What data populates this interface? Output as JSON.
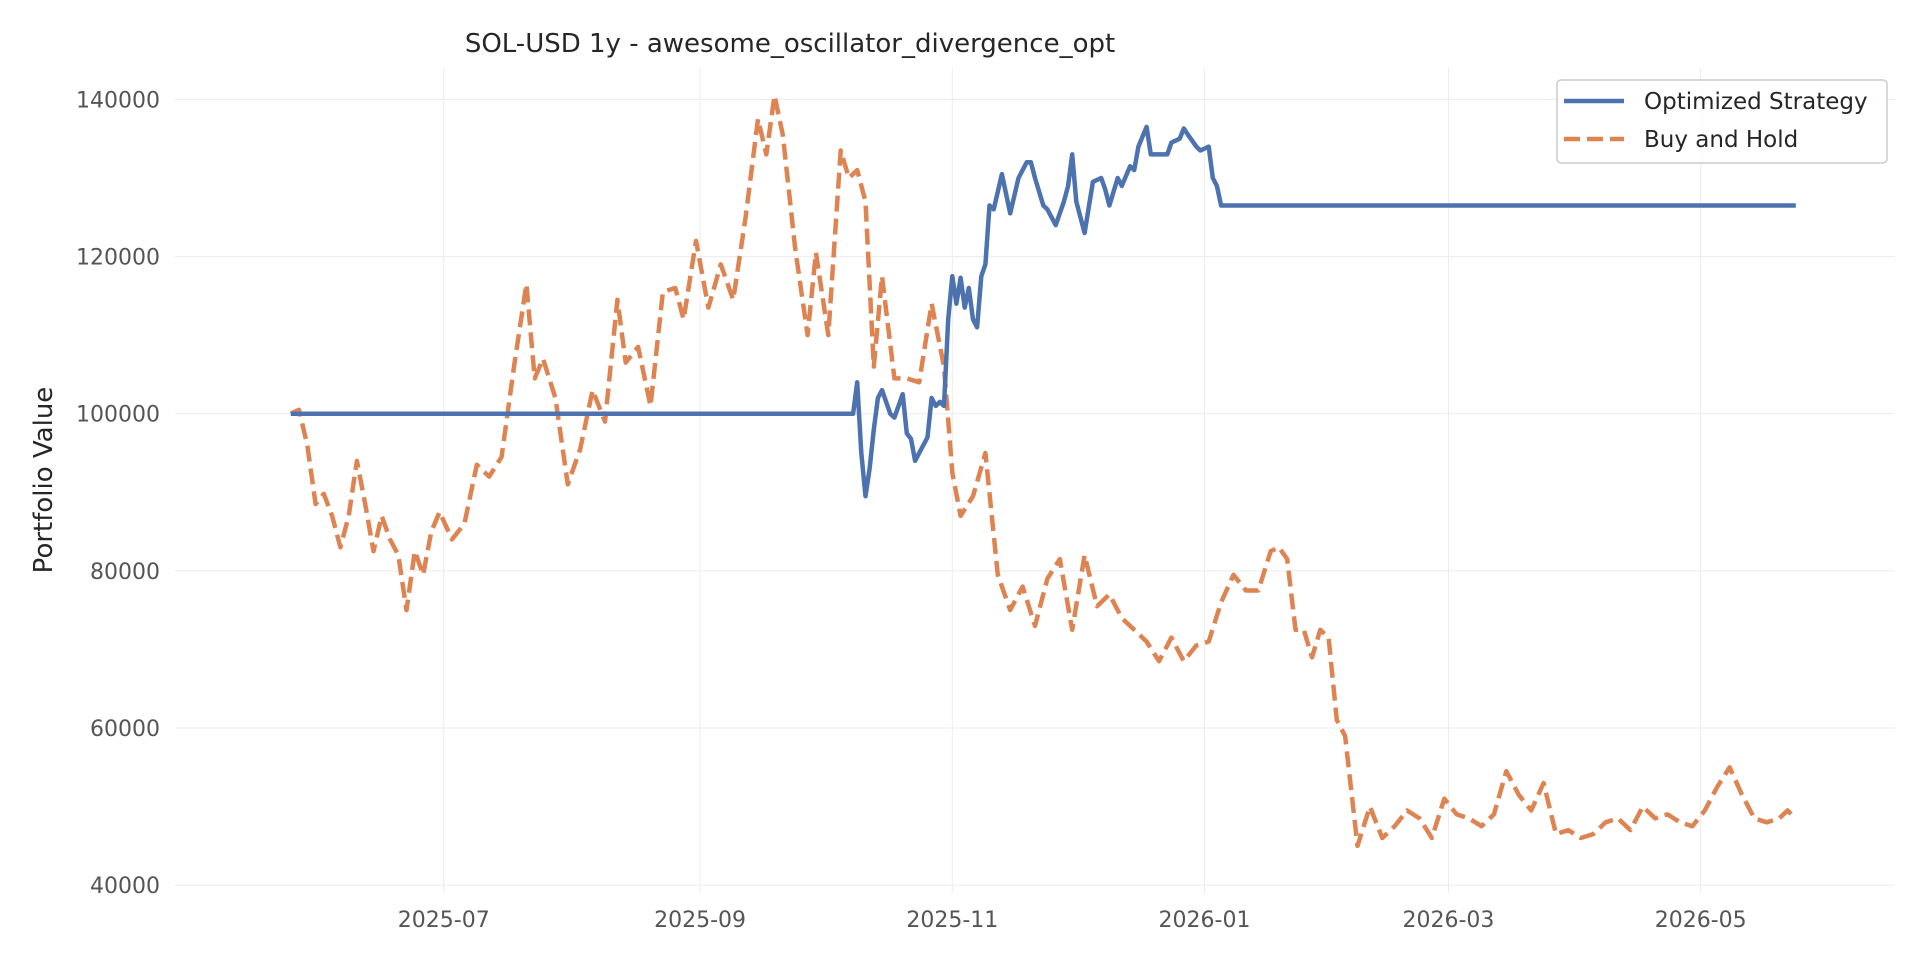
{
  "chart_data": {
    "type": "line",
    "title": "SOL-USD 1y - awesome_oscillator_divergence_opt",
    "xlabel": "",
    "ylabel": "Portfolio Value",
    "x_type": "date",
    "xlim": [
      "2025-04-27",
      "2026-06-17"
    ],
    "ylim": [
      39000,
      144000
    ],
    "grid": true,
    "legend_position": "top-right",
    "x_ticks": [
      "2025-07",
      "2025-09",
      "2025-11",
      "2026-01",
      "2026-03",
      "2026-05"
    ],
    "y_ticks": [
      40000,
      60000,
      80000,
      100000,
      120000,
      140000
    ],
    "x_tick_dates": [
      "2025-07-01",
      "2025-09-01",
      "2025-11-01",
      "2026-01-01",
      "2026-03-01",
      "2026-05-01"
    ],
    "series": [
      {
        "name": "Optimized Strategy",
        "color": "#4c72b0",
        "style": "solid",
        "x": [
          "2025-05-25",
          "2025-06-15",
          "2025-07-15",
          "2025-08-15",
          "2025-09-15",
          "2025-10-08",
          "2025-10-09",
          "2025-10-10",
          "2025-10-11",
          "2025-10-12",
          "2025-10-13",
          "2025-10-14",
          "2025-10-15",
          "2025-10-17",
          "2025-10-18",
          "2025-10-20",
          "2025-10-21",
          "2025-10-22",
          "2025-10-23",
          "2025-10-24",
          "2025-10-26",
          "2025-10-27",
          "2025-10-28",
          "2025-10-29",
          "2025-10-30",
          "2025-10-31",
          "2025-11-01",
          "2025-11-02",
          "2025-11-03",
          "2025-11-04",
          "2025-11-05",
          "2025-11-06",
          "2025-11-07",
          "2025-11-08",
          "2025-11-09",
          "2025-11-10",
          "2025-11-11",
          "2025-11-13",
          "2025-11-15",
          "2025-11-17",
          "2025-11-19",
          "2025-11-20",
          "2025-11-21",
          "2025-11-23",
          "2025-11-24",
          "2025-11-26",
          "2025-11-28",
          "2025-11-29",
          "2025-11-30",
          "2025-12-01",
          "2025-12-03",
          "2025-12-05",
          "2025-12-07",
          "2025-12-08",
          "2025-12-09",
          "2025-12-11",
          "2025-12-12",
          "2025-12-14",
          "2025-12-15",
          "2025-12-16",
          "2025-12-18",
          "2025-12-19",
          "2025-12-21",
          "2025-12-23",
          "2025-12-24",
          "2025-12-26",
          "2025-12-27",
          "2025-12-28",
          "2025-12-30",
          "2025-12-31",
          "2026-01-02",
          "2026-01-03",
          "2026-01-04",
          "2026-01-05",
          "2026-02-15",
          "2026-04-01",
          "2026-05-24"
        ],
        "y": [
          100000,
          100000,
          100000,
          100000,
          100000,
          100000,
          104000,
          95000,
          89500,
          93000,
          98000,
          102000,
          103000,
          100000,
          99500,
          102500,
          97500,
          96800,
          94000,
          95000,
          97000,
          102000,
          101000,
          101500,
          101000,
          112000,
          117500,
          114000,
          117300,
          113500,
          116000,
          112000,
          111000,
          117500,
          119000,
          126500,
          126000,
          130500,
          125500,
          130000,
          132000,
          132000,
          130000,
          126500,
          126000,
          124000,
          127000,
          129000,
          133000,
          127000,
          123000,
          129500,
          130000,
          128500,
          126500,
          130000,
          129000,
          131500,
          131000,
          134000,
          136500,
          133000,
          133000,
          133000,
          134500,
          135000,
          136300,
          135500,
          134000,
          133500,
          134000,
          130000,
          129000,
          126500,
          126500,
          126500,
          126500
        ]
      },
      {
        "name": "Buy and Hold",
        "color": "#dd8452",
        "style": "dashed",
        "x": [
          "2025-05-25",
          "2025-05-27",
          "2025-05-29",
          "2025-05-31",
          "2025-06-02",
          "2025-06-04",
          "2025-06-06",
          "2025-06-08",
          "2025-06-10",
          "2025-06-12",
          "2025-06-14",
          "2025-06-16",
          "2025-06-18",
          "2025-06-20",
          "2025-06-22",
          "2025-06-24",
          "2025-06-26",
          "2025-06-28",
          "2025-06-30",
          "2025-07-03",
          "2025-07-06",
          "2025-07-09",
          "2025-07-12",
          "2025-07-15",
          "2025-07-18",
          "2025-07-21",
          "2025-07-23",
          "2025-07-25",
          "2025-07-28",
          "2025-07-31",
          "2025-08-03",
          "2025-08-06",
          "2025-08-09",
          "2025-08-12",
          "2025-08-14",
          "2025-08-17",
          "2025-08-20",
          "2025-08-23",
          "2025-08-26",
          "2025-08-28",
          "2025-08-31",
          "2025-09-03",
          "2025-09-06",
          "2025-09-09",
          "2025-09-12",
          "2025-09-15",
          "2025-09-17",
          "2025-09-19",
          "2025-09-21",
          "2025-09-24",
          "2025-09-27",
          "2025-09-29",
          "2025-10-02",
          "2025-10-05",
          "2025-10-07",
          "2025-10-09",
          "2025-10-11",
          "2025-10-13",
          "2025-10-15",
          "2025-10-18",
          "2025-10-21",
          "2025-10-24",
          "2025-10-27",
          "2025-10-30",
          "2025-11-01",
          "2025-11-03",
          "2025-11-06",
          "2025-11-09",
          "2025-11-12",
          "2025-11-15",
          "2025-11-18",
          "2025-11-21",
          "2025-11-24",
          "2025-11-27",
          "2025-11-30",
          "2025-12-03",
          "2025-12-06",
          "2025-12-09",
          "2025-12-12",
          "2025-12-15",
          "2025-12-18",
          "2025-12-21",
          "2025-12-24",
          "2025-12-27",
          "2025-12-30",
          "2026-01-02",
          "2026-01-05",
          "2026-01-08",
          "2026-01-11",
          "2026-01-14",
          "2026-01-17",
          "2026-01-19",
          "2026-01-21",
          "2026-01-23",
          "2026-01-25",
          "2026-01-27",
          "2026-01-29",
          "2026-01-31",
          "2026-02-02",
          "2026-02-04",
          "2026-02-07",
          "2026-02-10",
          "2026-02-13",
          "2026-02-16",
          "2026-02-19",
          "2026-02-22",
          "2026-02-25",
          "2026-02-28",
          "2026-03-03",
          "2026-03-06",
          "2026-03-09",
          "2026-03-12",
          "2026-03-15",
          "2026-03-18",
          "2026-03-21",
          "2026-03-24",
          "2026-03-27",
          "2026-03-30",
          "2026-04-02",
          "2026-04-05",
          "2026-04-08",
          "2026-04-11",
          "2026-04-14",
          "2026-04-17",
          "2026-04-20",
          "2026-04-23",
          "2026-04-26",
          "2026-04-29",
          "2026-05-02",
          "2026-05-05",
          "2026-05-08",
          "2026-05-11",
          "2026-05-14",
          "2026-05-17",
          "2026-05-20",
          "2026-05-22",
          "2026-05-24"
        ],
        "y": [
          100000,
          100500,
          96000,
          88500,
          89800,
          87000,
          83000,
          87000,
          94000,
          88500,
          82500,
          87000,
          84000,
          82000,
          75000,
          82500,
          79500,
          85000,
          87500,
          84000,
          86000,
          93500,
          92000,
          94500,
          106000,
          116500,
          104500,
          107000,
          102000,
          91000,
          95500,
          103000,
          99000,
          114500,
          106500,
          108500,
          101000,
          115500,
          116000,
          112000,
          122000,
          113500,
          119000,
          114500,
          125000,
          137500,
          133000,
          140500,
          135500,
          121000,
          110000,
          120500,
          110000,
          133500,
          130000,
          131000,
          127000,
          106000,
          117500,
          104500,
          104500,
          104000,
          114000,
          106000,
          92500,
          87000,
          89500,
          95000,
          79500,
          75000,
          78000,
          73000,
          79000,
          81500,
          72500,
          82000,
          75500,
          77000,
          74000,
          72500,
          71000,
          68500,
          71500,
          68500,
          70500,
          71000,
          76000,
          79500,
          77500,
          77500,
          82500,
          83000,
          81500,
          72500,
          72500,
          69000,
          72500,
          71500,
          61000,
          59000,
          45000,
          50000,
          46000,
          47500,
          49500,
          48500,
          46000,
          51000,
          49000,
          48500,
          47500,
          49000,
          54500,
          51500,
          49500,
          53000,
          46500,
          47000,
          46000,
          46500,
          48000,
          48500,
          47000,
          50000,
          48500,
          49000,
          48000,
          47500,
          49500,
          52500,
          55000,
          51500,
          48500,
          48000,
          48500,
          49500,
          48500
        ]
      }
    ]
  }
}
